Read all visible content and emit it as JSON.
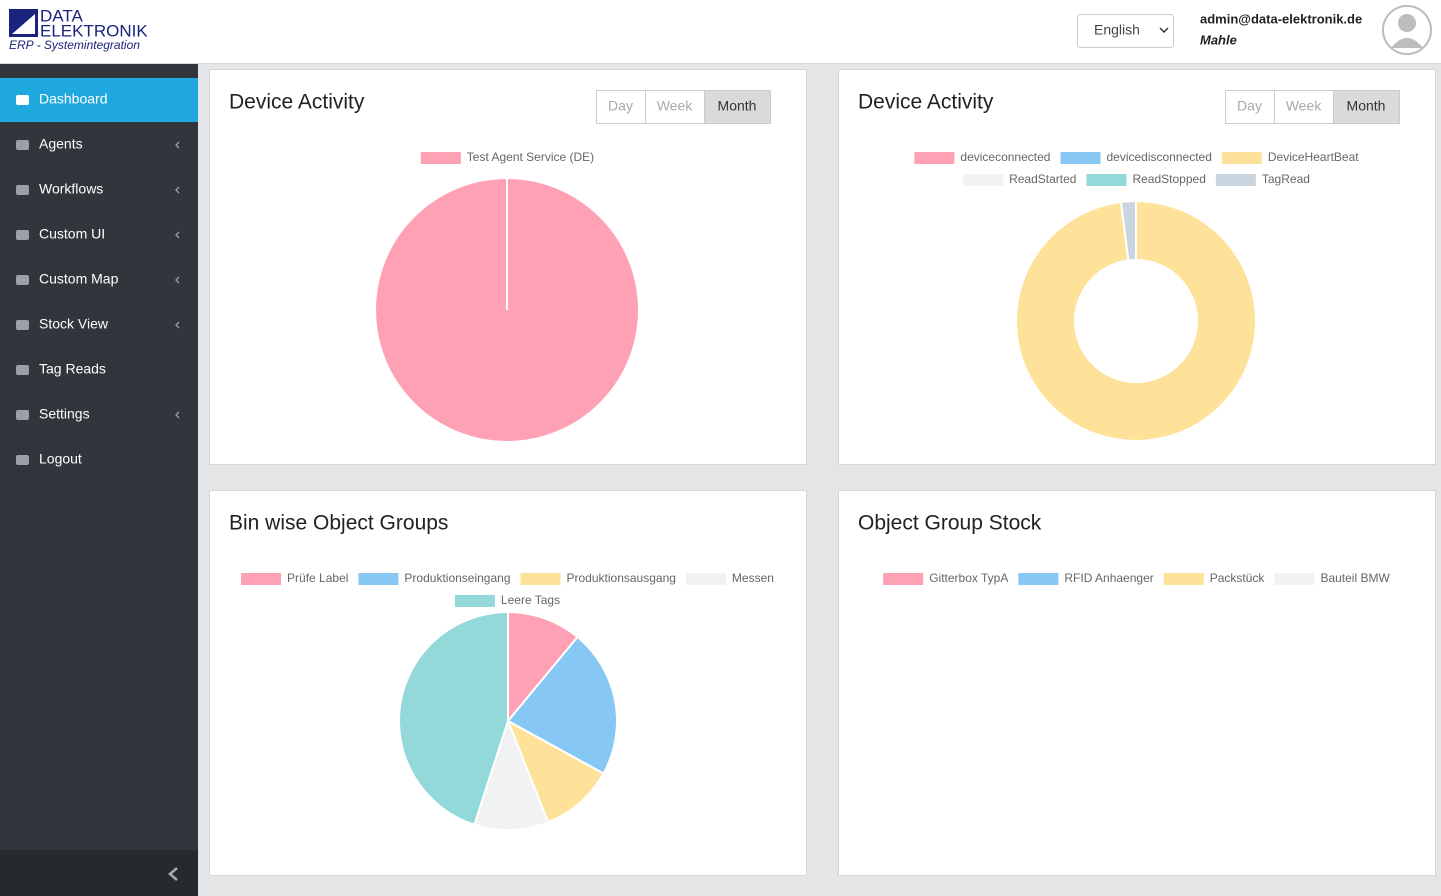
{
  "header": {
    "logo_line1": "DATA",
    "logo_line2": "ELEKTRONIK",
    "logo_tagline": "ERP - Systemintegration",
    "language": "English",
    "user_email": "admin@data-elektronik.de",
    "user_company": "Mahle"
  },
  "sidebar": {
    "active": 0,
    "items": [
      {
        "label": "Dashboard",
        "submenu": false
      },
      {
        "label": "Agents",
        "submenu": true
      },
      {
        "label": "Workflows",
        "submenu": true
      },
      {
        "label": "Custom UI",
        "submenu": true
      },
      {
        "label": "Custom Map",
        "submenu": true
      },
      {
        "label": "Stock View",
        "submenu": true
      },
      {
        "label": "Tag Reads",
        "submenu": false
      },
      {
        "label": "Settings",
        "submenu": true
      },
      {
        "label": "Logout",
        "submenu": false
      }
    ]
  },
  "chart_data": [
    {
      "type": "pie",
      "title": "Device Activity",
      "range_options": [
        "Day",
        "Week",
        "Month"
      ],
      "selected_range": 2,
      "categories": [
        "Test Agent Service (DE)"
      ],
      "values": [
        100
      ],
      "colors": [
        "#ffa1b5"
      ]
    },
    {
      "type": "doughnut",
      "title": "Device Activity",
      "range_options": [
        "Day",
        "Week",
        "Month"
      ],
      "selected_range": 2,
      "categories": [
        "deviceconnected",
        "devicedisconnected",
        "DeviceHeartBeat",
        "ReadStarted",
        "ReadStopped",
        "TagRead"
      ],
      "values": [
        0,
        0,
        98,
        0,
        0,
        2
      ],
      "colors": [
        "#ffa1b5",
        "#86c7f3",
        "#ffe29a",
        "#f1f2f4",
        "#93d9d9",
        "#c9d6df"
      ]
    },
    {
      "type": "pie",
      "title": "Bin wise Object Groups",
      "categories": [
        "Prüfe Label",
        "Produktionseingang",
        "Produktionsausgang",
        "Messen",
        "Leere Tags"
      ],
      "values": [
        11,
        22,
        11,
        11,
        45
      ],
      "colors": [
        "#ffa1b5",
        "#86c7f3",
        "#ffe29a",
        "#f1f2f4",
        "#93d9d9"
      ]
    },
    {
      "type": "pie",
      "title": "Object Group Stock",
      "categories": [
        "Gitterbox TypA",
        "RFID Anhaenger",
        "Packstück",
        "Bauteil BMW"
      ],
      "values": [
        0,
        0,
        0,
        0
      ],
      "colors": [
        "#ffa1b5",
        "#86c7f3",
        "#ffe29a",
        "#f1f2f4"
      ]
    }
  ]
}
